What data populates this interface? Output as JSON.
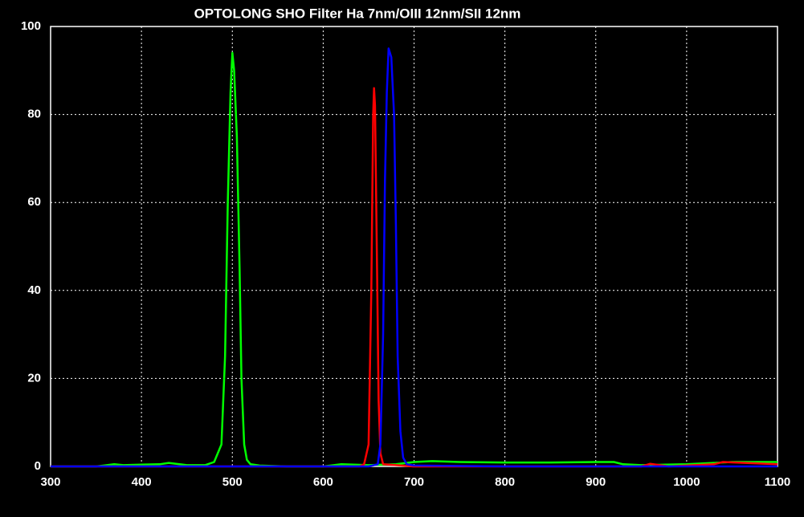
{
  "chart_data": {
    "type": "line",
    "title": "OPTOLONG SHO Filter Ha 7nm/OIII 12nm/SII 12nm",
    "xlim": [
      300,
      1100
    ],
    "xticks": [
      300,
      400,
      500,
      600,
      700,
      800,
      900,
      1000,
      1100
    ],
    "ylim": [
      0,
      100
    ],
    "yticks": [
      0,
      20,
      40,
      60,
      80,
      100
    ],
    "grid": true,
    "series": [
      {
        "color": "#00ff00",
        "x": [
          300,
          350,
          370,
          380,
          400,
          420,
          430,
          450,
          470,
          480,
          488,
          492,
          495,
          498,
          500,
          502,
          505,
          508,
          510,
          513,
          516,
          520,
          530,
          560,
          600,
          620,
          650,
          680,
          700,
          720,
          750,
          800,
          850,
          900,
          920,
          930,
          950,
          1000,
          1050,
          1100
        ],
        "values": [
          0,
          0,
          0.5,
          0.3,
          0.4,
          0.5,
          0.8,
          0.3,
          0.3,
          1,
          5,
          25,
          60,
          85,
          94,
          90,
          75,
          45,
          20,
          5,
          1.5,
          0.5,
          0.2,
          0,
          0,
          0.5,
          0.3,
          0.5,
          1,
          1.2,
          1,
          0.9,
          0.9,
          1,
          1,
          0.5,
          0.3,
          0.5,
          1,
          1
        ]
      },
      {
        "color": "#ff0000",
        "x": [
          300,
          640,
          645,
          650,
          653,
          655,
          656,
          657,
          659,
          661,
          663,
          666,
          680,
          700,
          800,
          950,
          960,
          980,
          1030,
          1040,
          1100
        ],
        "values": [
          0,
          0,
          0.5,
          5,
          40,
          80,
          86,
          82,
          50,
          15,
          3,
          0.5,
          0.3,
          0,
          0,
          0,
          0.6,
          0,
          0.5,
          1,
          0.5
        ]
      },
      {
        "color": "#0000ff",
        "x": [
          300,
          650,
          660,
          663,
          666,
          668,
          670,
          672,
          675,
          678,
          680,
          682,
          685,
          688,
          692,
          700,
          800,
          1100
        ],
        "values": [
          0,
          0,
          0.5,
          5,
          30,
          65,
          85,
          95,
          93,
          80,
          55,
          25,
          8,
          2,
          0.5,
          0.2,
          0,
          0
        ]
      }
    ]
  }
}
